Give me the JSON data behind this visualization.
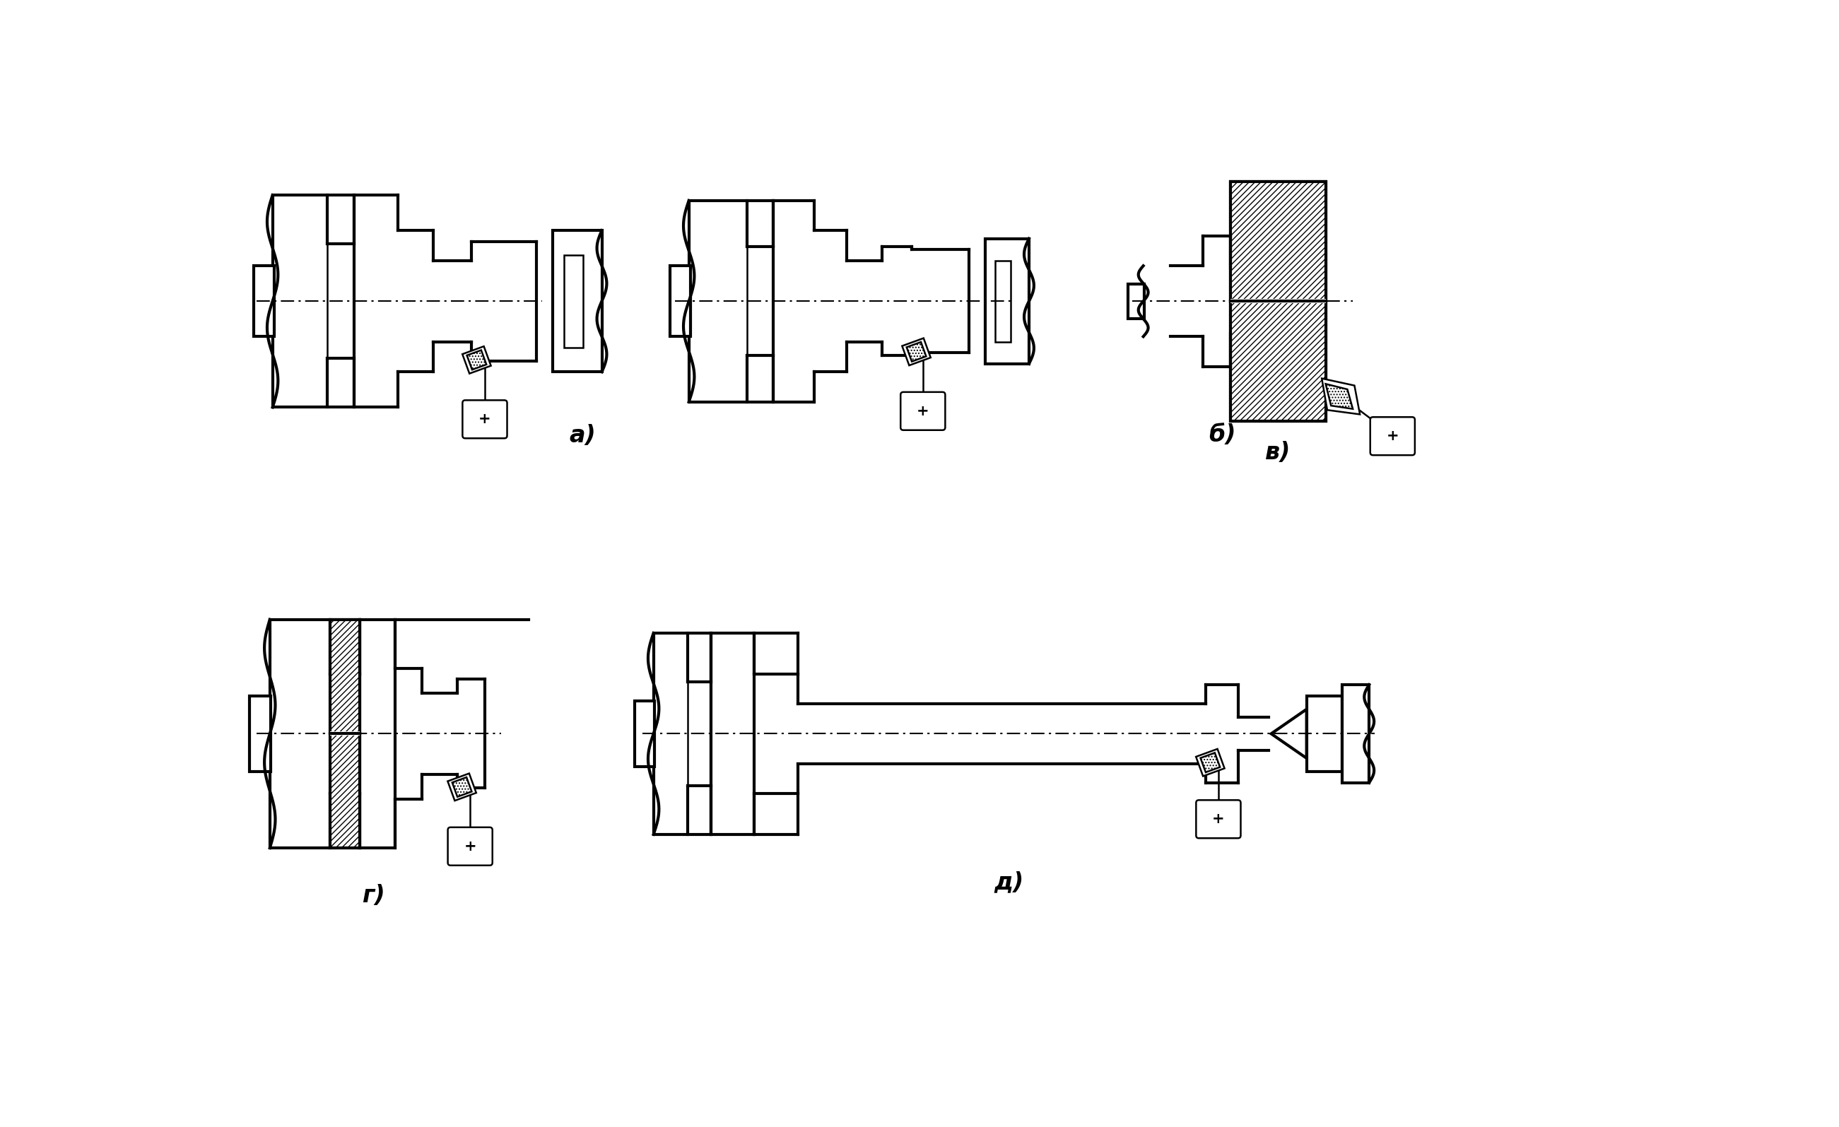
{
  "background_color": "#ffffff",
  "label_a": "а)",
  "label_b": "б)",
  "label_v": "в)",
  "label_g": "г)",
  "label_d": "д)",
  "label_fontsize": 24
}
